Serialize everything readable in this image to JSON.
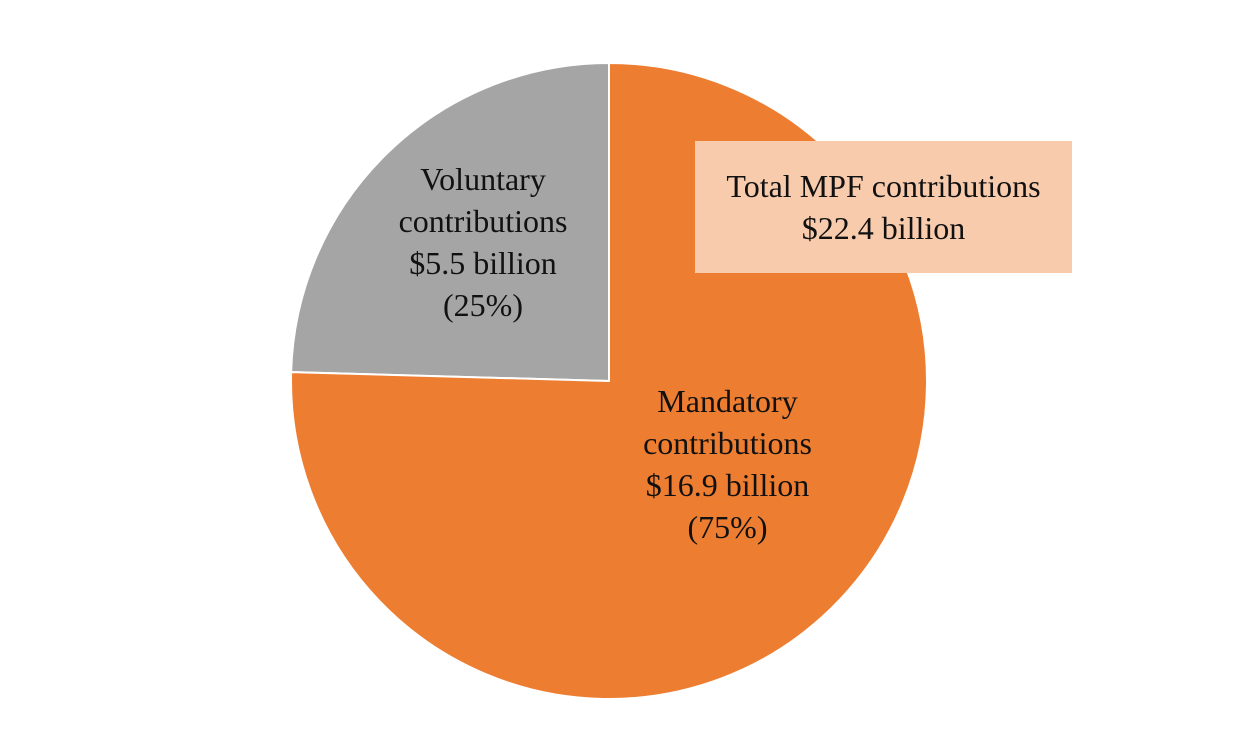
{
  "chart_data": {
    "type": "pie",
    "slices": [
      {
        "name": "Voluntary contributions",
        "value": 5.5,
        "value_label": "$5.5 billion",
        "percent": 25,
        "percent_label": "(25%)",
        "color": "#A5A5A5"
      },
      {
        "name": "Mandatory contributions",
        "value": 16.9,
        "value_label": "$16.9 billion",
        "percent": 75,
        "percent_label": "(75%)",
        "color": "#ED7D31"
      }
    ],
    "labels": {
      "voluntary": {
        "line1": "Voluntary",
        "line2": "contributions",
        "line3": "$5.5 billion",
        "line4": "(25%)"
      },
      "mandatory": {
        "line1": "Mandatory",
        "line2": "contributions",
        "line3": "$16.9 billion",
        "line4": "(75%)"
      }
    },
    "total": {
      "label": "Total MPF contributions",
      "value_label": "$22.4 billion",
      "value": 22.4
    },
    "colors": {
      "total_box_bg": "#F8CBAD",
      "slice_border": "#FFFFFF"
    }
  }
}
